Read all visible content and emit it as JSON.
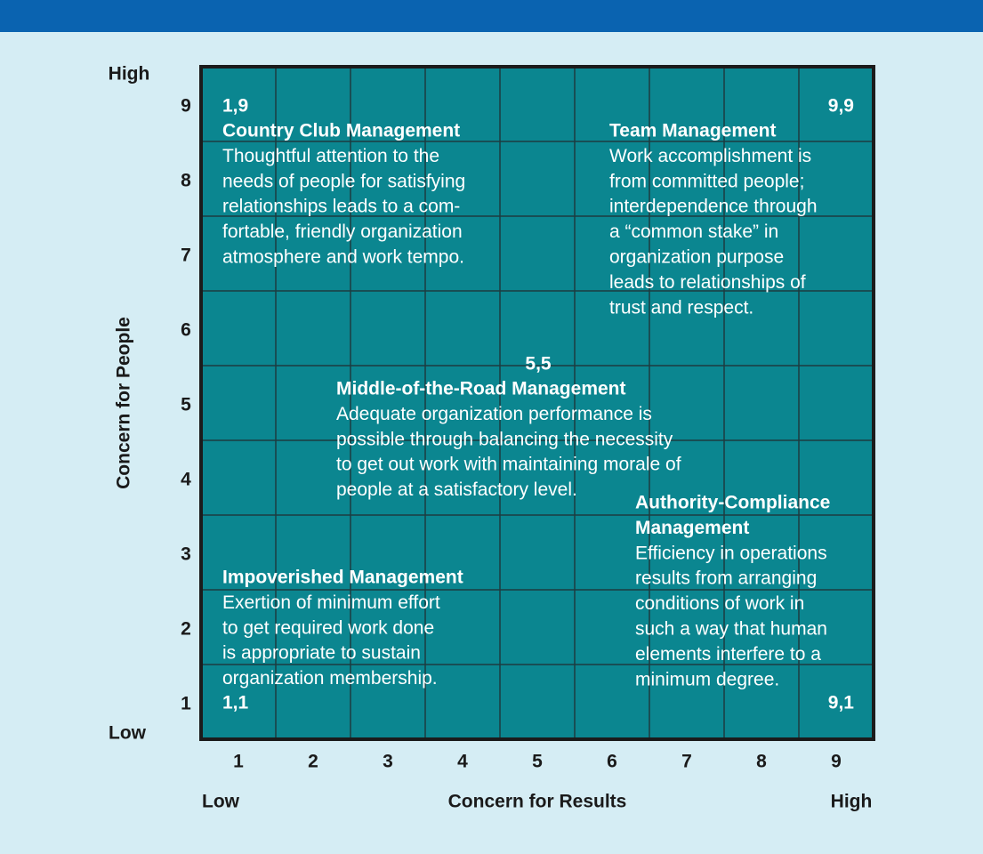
{
  "y_axis": {
    "label": "Concern for People",
    "high": "High",
    "low": "Low",
    "ticks": [
      9,
      8,
      7,
      6,
      5,
      4,
      3,
      2,
      1
    ]
  },
  "x_axis": {
    "label": "Concern for Results",
    "high": "High",
    "low": "Low",
    "ticks": [
      1,
      2,
      3,
      4,
      5,
      6,
      7,
      8,
      9
    ]
  },
  "styles": [
    {
      "coords": "1,9",
      "title": [
        "Country Club Management"
      ],
      "lines": [
        "Thoughtful attention to the",
        "needs of people for satisfying",
        "relationships leads to a com-",
        "fortable, friendly organization",
        "atmosphere and work tempo."
      ]
    },
    {
      "coords": "9,9",
      "title": [
        "Team Management"
      ],
      "lines": [
        "Work accomplishment is",
        "from committed people;",
        "interdependence through",
        "a “common stake” in",
        "organization purpose",
        "leads to relationships of",
        "trust and respect."
      ]
    },
    {
      "coords": "5,5",
      "title": [
        "Middle-of-the-Road Management"
      ],
      "lines": [
        "Adequate organization performance is",
        "possible through balancing the necessity",
        "to get out work with maintaining morale of",
        "people at a satisfactory level."
      ]
    },
    {
      "coords": "9,1",
      "title": [
        "Authority-Compliance",
        "Management"
      ],
      "lines": [
        "Efficiency in operations",
        "results from arranging",
        "conditions of work in",
        "such a way that human",
        "elements interfere to a",
        "minimum degree."
      ]
    },
    {
      "coords": "1,1",
      "title": [
        "Impoverished Management"
      ],
      "lines": [
        "Exertion of minimum effort",
        "to get required work done",
        "is appropriate to sustain",
        "organization membership."
      ]
    }
  ]
}
